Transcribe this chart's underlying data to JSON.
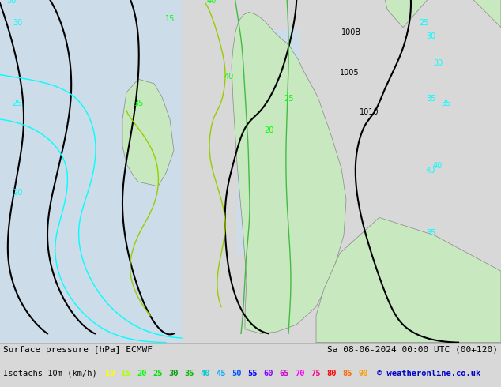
{
  "background_color": "#d8d8d8",
  "title_left": "Surface pressure [hPa] ECMWF",
  "title_right": "Sa 08-06-2024 00:00 UTC (00+120)",
  "subtitle_left": "Isotachs 10m (km/h)",
  "copyright": "© weatheronline.co.uk",
  "legend_values": [
    "10",
    "15",
    "20",
    "25",
    "30",
    "35",
    "40",
    "45",
    "50",
    "55",
    "60",
    "65",
    "70",
    "75",
    "80",
    "85",
    "90"
  ],
  "legend_colors": [
    "#ffff00",
    "#aaff00",
    "#00ff00",
    "#00dd00",
    "#009900",
    "#00bb00",
    "#00cccc",
    "#00aaff",
    "#0055ff",
    "#0000ff",
    "#8800ff",
    "#cc00cc",
    "#ff00ff",
    "#ff0088",
    "#ff0000",
    "#ff6600",
    "#ff9900"
  ],
  "figsize": [
    6.34,
    4.9
  ],
  "dpi": 100,
  "font_size_title": 8.0,
  "font_size_legend": 7.5,
  "bottom_bar_color": "#ffffff",
  "map_bg": "#d8d8d8",
  "sea_color": "#d8e8f0",
  "land_color": "#c8e8c0"
}
